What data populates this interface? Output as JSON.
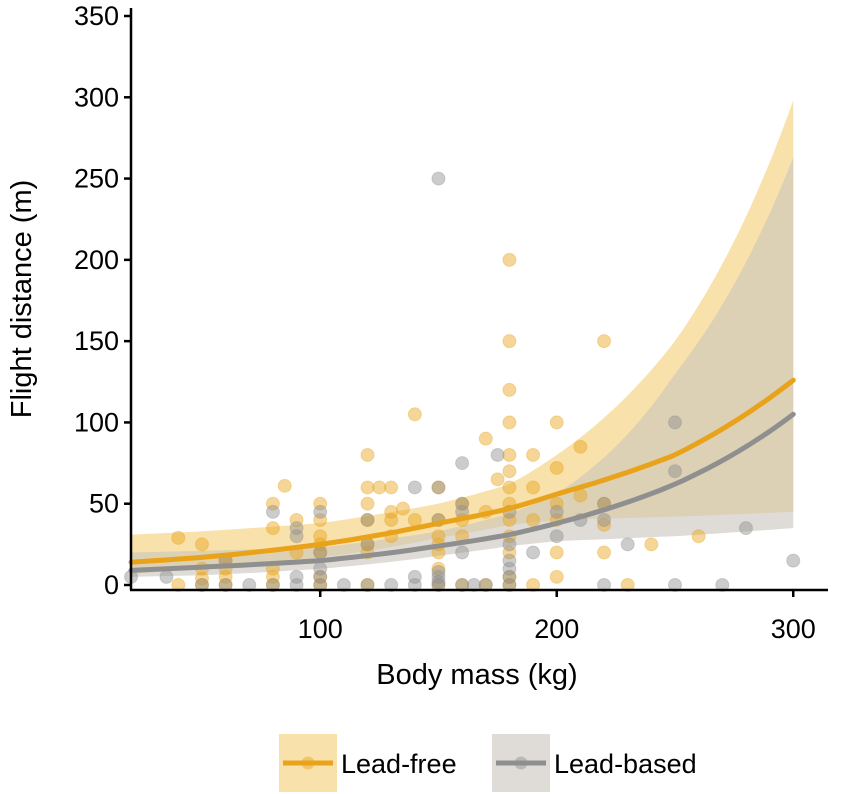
{
  "chart_data": {
    "type": "scatter",
    "title": "",
    "xlabel": "Body mass (kg)",
    "ylabel": "Flight distance (m)",
    "xlim": [
      20,
      313
    ],
    "ylim": [
      0,
      350
    ],
    "xticks": [
      100,
      200,
      300
    ],
    "yticks": [
      0,
      50,
      100,
      150,
      200,
      250,
      300,
      350
    ],
    "grid": false,
    "legend_position": "bottom",
    "series": [
      {
        "name": "Lead-free",
        "color": "#E8A31A",
        "band_color": "#F5D78E",
        "fit": [
          {
            "x": 20,
            "y": 14,
            "lo": 7,
            "hi": 31
          },
          {
            "x": 50,
            "y": 17,
            "lo": 10,
            "hi": 33
          },
          {
            "x": 100,
            "y": 25,
            "lo": 17,
            "hi": 38
          },
          {
            "x": 150,
            "y": 38,
            "lo": 29,
            "hi": 50
          },
          {
            "x": 180,
            "y": 47,
            "lo": 37,
            "hi": 62
          },
          {
            "x": 200,
            "y": 56,
            "lo": 40,
            "hi": 80
          },
          {
            "x": 250,
            "y": 80,
            "lo": 42,
            "hi": 150
          },
          {
            "x": 300,
            "y": 126,
            "lo": 45,
            "hi": 298
          }
        ],
        "points": [
          {
            "x": 40,
            "y": 0
          },
          {
            "x": 40,
            "y": 29
          },
          {
            "x": 50,
            "y": 0
          },
          {
            "x": 50,
            "y": 4
          },
          {
            "x": 50,
            "y": 10
          },
          {
            "x": 50,
            "y": 25
          },
          {
            "x": 60,
            "y": 0
          },
          {
            "x": 60,
            "y": 5
          },
          {
            "x": 60,
            "y": 10
          },
          {
            "x": 60,
            "y": 15
          },
          {
            "x": 80,
            "y": 0
          },
          {
            "x": 80,
            "y": 5
          },
          {
            "x": 80,
            "y": 10
          },
          {
            "x": 80,
            "y": 35
          },
          {
            "x": 80,
            "y": 50
          },
          {
            "x": 85,
            "y": 61
          },
          {
            "x": 90,
            "y": 20
          },
          {
            "x": 90,
            "y": 40
          },
          {
            "x": 100,
            "y": 0
          },
          {
            "x": 100,
            "y": 5
          },
          {
            "x": 100,
            "y": 20
          },
          {
            "x": 100,
            "y": 25
          },
          {
            "x": 100,
            "y": 30
          },
          {
            "x": 100,
            "y": 40
          },
          {
            "x": 100,
            "y": 50
          },
          {
            "x": 120,
            "y": 0
          },
          {
            "x": 120,
            "y": 20
          },
          {
            "x": 120,
            "y": 25
          },
          {
            "x": 120,
            "y": 40
          },
          {
            "x": 120,
            "y": 50
          },
          {
            "x": 120,
            "y": 60
          },
          {
            "x": 120,
            "y": 80
          },
          {
            "x": 125,
            "y": 60
          },
          {
            "x": 130,
            "y": 30
          },
          {
            "x": 130,
            "y": 40
          },
          {
            "x": 130,
            "y": 45
          },
          {
            "x": 130,
            "y": 60
          },
          {
            "x": 135,
            "y": 47
          },
          {
            "x": 140,
            "y": 40
          },
          {
            "x": 140,
            "y": 105
          },
          {
            "x": 150,
            "y": 0
          },
          {
            "x": 150,
            "y": 10
          },
          {
            "x": 150,
            "y": 20
          },
          {
            "x": 150,
            "y": 25
          },
          {
            "x": 150,
            "y": 30
          },
          {
            "x": 150,
            "y": 40
          },
          {
            "x": 150,
            "y": 60
          },
          {
            "x": 160,
            "y": 0
          },
          {
            "x": 160,
            "y": 30
          },
          {
            "x": 160,
            "y": 40
          },
          {
            "x": 160,
            "y": 50
          },
          {
            "x": 170,
            "y": 0
          },
          {
            "x": 170,
            "y": 45
          },
          {
            "x": 170,
            "y": 90
          },
          {
            "x": 175,
            "y": 65
          },
          {
            "x": 180,
            "y": 0
          },
          {
            "x": 180,
            "y": 5
          },
          {
            "x": 180,
            "y": 20
          },
          {
            "x": 180,
            "y": 30
          },
          {
            "x": 180,
            "y": 40
          },
          {
            "x": 180,
            "y": 50
          },
          {
            "x": 180,
            "y": 60
          },
          {
            "x": 180,
            "y": 70
          },
          {
            "x": 180,
            "y": 80
          },
          {
            "x": 180,
            "y": 100
          },
          {
            "x": 180,
            "y": 120
          },
          {
            "x": 180,
            "y": 150
          },
          {
            "x": 180,
            "y": 200
          },
          {
            "x": 190,
            "y": 0
          },
          {
            "x": 190,
            "y": 40
          },
          {
            "x": 190,
            "y": 60
          },
          {
            "x": 190,
            "y": 80
          },
          {
            "x": 200,
            "y": 5
          },
          {
            "x": 200,
            "y": 20
          },
          {
            "x": 200,
            "y": 40
          },
          {
            "x": 200,
            "y": 50
          },
          {
            "x": 200,
            "y": 72
          },
          {
            "x": 200,
            "y": 100
          },
          {
            "x": 210,
            "y": 55
          },
          {
            "x": 210,
            "y": 85
          },
          {
            "x": 220,
            "y": 20
          },
          {
            "x": 220,
            "y": 37
          },
          {
            "x": 220,
            "y": 50
          },
          {
            "x": 220,
            "y": 150
          },
          {
            "x": 230,
            "y": 0
          },
          {
            "x": 240,
            "y": 25
          },
          {
            "x": 260,
            "y": 30
          }
        ]
      },
      {
        "name": "Lead-based",
        "color": "#8F8F8F",
        "band_color": "#C9C4BC",
        "fit": [
          {
            "x": 20,
            "y": 9,
            "lo": 5,
            "hi": 20
          },
          {
            "x": 50,
            "y": 11,
            "lo": 6,
            "hi": 21
          },
          {
            "x": 100,
            "y": 15,
            "lo": 10,
            "hi": 23
          },
          {
            "x": 150,
            "y": 24,
            "lo": 18,
            "hi": 33
          },
          {
            "x": 180,
            "y": 31,
            "lo": 24,
            "hi": 44
          },
          {
            "x": 200,
            "y": 38,
            "lo": 27,
            "hi": 56
          },
          {
            "x": 250,
            "y": 62,
            "lo": 30,
            "hi": 130
          },
          {
            "x": 300,
            "y": 105,
            "lo": 35,
            "hi": 263
          }
        ],
        "points": [
          {
            "x": 20,
            "y": 5
          },
          {
            "x": 35,
            "y": 5
          },
          {
            "x": 50,
            "y": 0
          },
          {
            "x": 60,
            "y": 0
          },
          {
            "x": 60,
            "y": 15
          },
          {
            "x": 70,
            "y": 0
          },
          {
            "x": 80,
            "y": 0
          },
          {
            "x": 80,
            "y": 45
          },
          {
            "x": 90,
            "y": 0
          },
          {
            "x": 90,
            "y": 5
          },
          {
            "x": 90,
            "y": 30
          },
          {
            "x": 90,
            "y": 35
          },
          {
            "x": 100,
            "y": 0
          },
          {
            "x": 100,
            "y": 5
          },
          {
            "x": 100,
            "y": 10
          },
          {
            "x": 100,
            "y": 20
          },
          {
            "x": 100,
            "y": 45
          },
          {
            "x": 110,
            "y": 0
          },
          {
            "x": 120,
            "y": 0
          },
          {
            "x": 120,
            "y": 25
          },
          {
            "x": 120,
            "y": 40
          },
          {
            "x": 130,
            "y": 0
          },
          {
            "x": 140,
            "y": 0
          },
          {
            "x": 140,
            "y": 5
          },
          {
            "x": 140,
            "y": 60
          },
          {
            "x": 150,
            "y": 0
          },
          {
            "x": 150,
            "y": 2
          },
          {
            "x": 150,
            "y": 5
          },
          {
            "x": 150,
            "y": 8
          },
          {
            "x": 150,
            "y": 40
          },
          {
            "x": 150,
            "y": 60
          },
          {
            "x": 150,
            "y": 250
          },
          {
            "x": 160,
            "y": 0
          },
          {
            "x": 160,
            "y": 20
          },
          {
            "x": 160,
            "y": 45
          },
          {
            "x": 160,
            "y": 50
          },
          {
            "x": 160,
            "y": 75
          },
          {
            "x": 165,
            "y": 0
          },
          {
            "x": 170,
            "y": 0
          },
          {
            "x": 175,
            "y": 80
          },
          {
            "x": 180,
            "y": 0
          },
          {
            "x": 180,
            "y": 5
          },
          {
            "x": 180,
            "y": 10
          },
          {
            "x": 180,
            "y": 15
          },
          {
            "x": 180,
            "y": 25
          },
          {
            "x": 180,
            "y": 45
          },
          {
            "x": 190,
            "y": 20
          },
          {
            "x": 200,
            "y": 30
          },
          {
            "x": 200,
            "y": 45
          },
          {
            "x": 210,
            "y": 40
          },
          {
            "x": 220,
            "y": 0
          },
          {
            "x": 220,
            "y": 40
          },
          {
            "x": 220,
            "y": 50
          },
          {
            "x": 230,
            "y": 25
          },
          {
            "x": 250,
            "y": 0
          },
          {
            "x": 250,
            "y": 70
          },
          {
            "x": 250,
            "y": 100
          },
          {
            "x": 270,
            "y": 0
          },
          {
            "x": 280,
            "y": 35
          },
          {
            "x": 300,
            "y": 15
          }
        ]
      }
    ]
  }
}
